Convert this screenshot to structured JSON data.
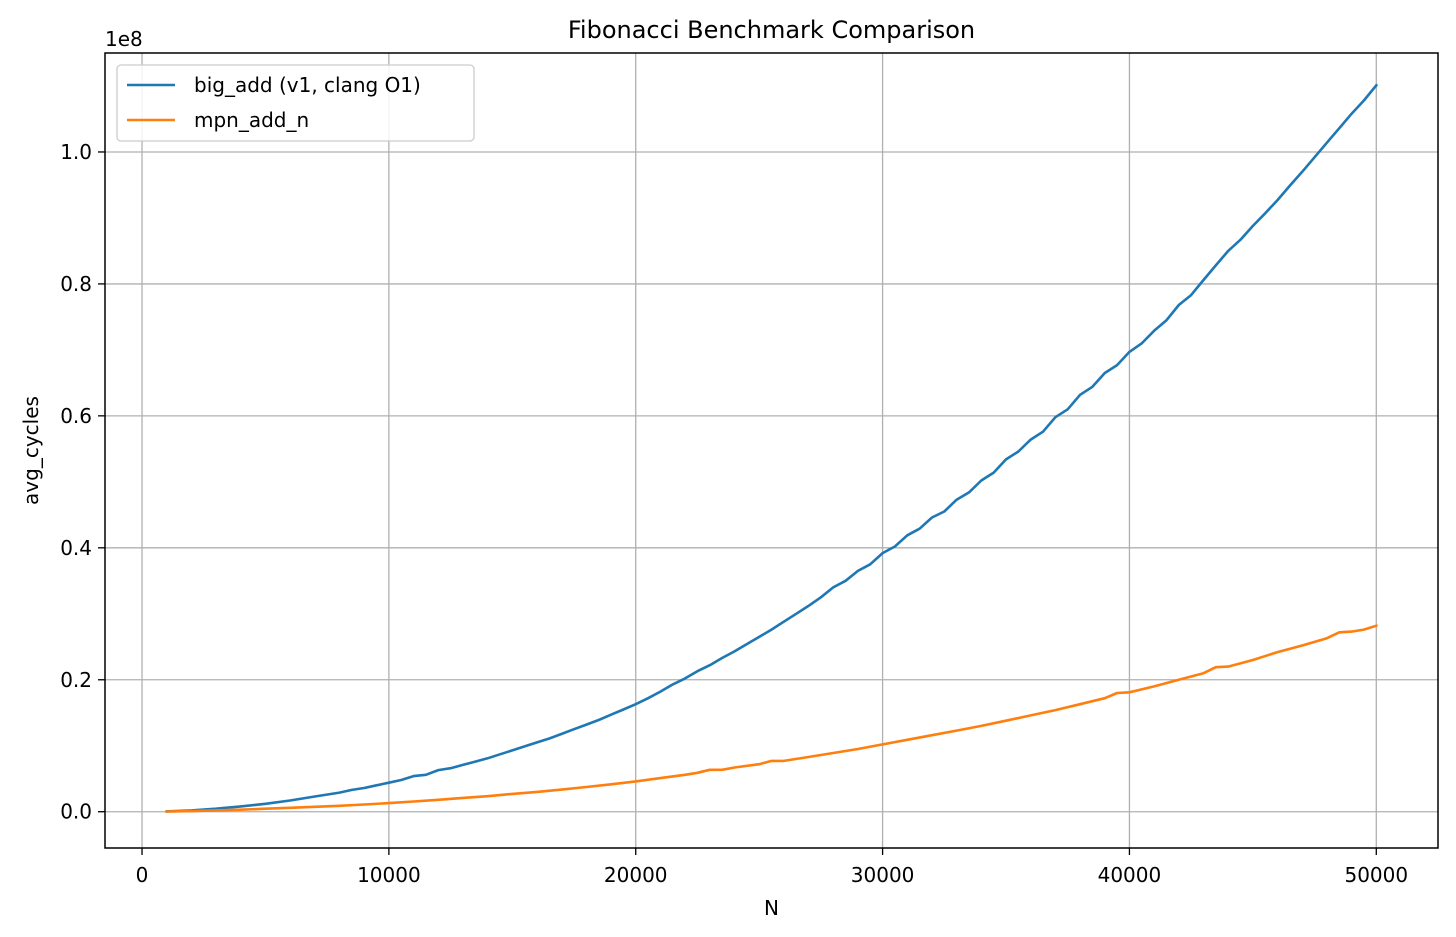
{
  "chart_data": {
    "type": "line",
    "title": "Fibonacci Benchmark Comparison",
    "xlabel": "N",
    "ylabel": "avg_cycles",
    "y_offset_label": "1e8",
    "y_scale": 100000000,
    "xlim": [
      -1500,
      52500
    ],
    "ylim": [
      -5500000,
      115000000
    ],
    "xticks": [
      0,
      10000,
      20000,
      30000,
      40000,
      50000
    ],
    "xtick_labels": [
      "0",
      "10000",
      "20000",
      "30000",
      "40000",
      "50000"
    ],
    "yticks": [
      0,
      20000000,
      40000000,
      60000000,
      80000000,
      100000000
    ],
    "ytick_labels": [
      "0.0",
      "0.2",
      "0.4",
      "0.6",
      "0.8",
      "1.0"
    ],
    "grid": true,
    "legend_position": "upper-left",
    "series": [
      {
        "name": "big_add (v1, clang O1)",
        "color": "#1f77b4",
        "x": [
          1000,
          2000,
          3000,
          4000,
          5000,
          6000,
          7000,
          8000,
          8500,
          9000,
          9500,
          10000,
          10500,
          11000,
          11500,
          12000,
          12500,
          13000,
          13500,
          14000,
          14500,
          15000,
          15500,
          16000,
          16500,
          17000,
          17500,
          18000,
          18500,
          19000,
          19500,
          20000,
          20500,
          21000,
          21500,
          22000,
          22500,
          23000,
          23500,
          24000,
          24500,
          25000,
          25500,
          26000,
          26500,
          27000,
          27500,
          28000,
          28500,
          29000,
          29500,
          30000,
          30500,
          31000,
          31500,
          32000,
          32500,
          33000,
          33500,
          34000,
          34500,
          35000,
          35500,
          36000,
          36500,
          37000,
          37500,
          38000,
          38500,
          39000,
          39500,
          40000,
          40500,
          41000,
          41500,
          42000,
          42500,
          43000,
          43500,
          44000,
          44500,
          45000,
          45500,
          46000,
          46500,
          47000,
          47500,
          48000,
          48500,
          49000,
          49500,
          50000
        ],
        "y": [
          50000,
          200000,
          450000,
          800000,
          1200000,
          1700000,
          2300000,
          2900000,
          3300000,
          3600000,
          4000000,
          4400000,
          4800000,
          5400000,
          5600000,
          6300000,
          6600000,
          7100000,
          7600000,
          8100000,
          8700000,
          9300000,
          9900000,
          10500000,
          11100000,
          11800000,
          12500000,
          13200000,
          13900000,
          14700000,
          15500000,
          16300000,
          17200000,
          18200000,
          19300000,
          20200000,
          21300000,
          22200000,
          23300000,
          24300000,
          25400000,
          26500000,
          27600000,
          28800000,
          30000000,
          31200000,
          32500000,
          34000000,
          35000000,
          36500000,
          37500000,
          39200000,
          40200000,
          41900000,
          42900000,
          44600000,
          45500000,
          47300000,
          48400000,
          50200000,
          51400000,
          53400000,
          54600000,
          56400000,
          57600000,
          59800000,
          61000000,
          63200000,
          64400000,
          66500000,
          67700000,
          69700000,
          71000000,
          72900000,
          74500000,
          76800000,
          78300000,
          80600000,
          82800000,
          85000000,
          86700000,
          88800000,
          90700000,
          92700000,
          94900000,
          97000000,
          99200000,
          101400000,
          103600000,
          105800000,
          107800000,
          110100000
        ]
      },
      {
        "name": "mpn_add_n",
        "color": "#ff7f0e",
        "x": [
          1000,
          2000,
          3000,
          4000,
          5000,
          6000,
          7000,
          8000,
          9000,
          10000,
          11000,
          12000,
          13000,
          14000,
          15000,
          16000,
          17000,
          18000,
          19000,
          20000,
          21000,
          22000,
          22500,
          23000,
          23500,
          24000,
          25000,
          25500,
          26000,
          27000,
          28000,
          29000,
          30000,
          31000,
          32000,
          33000,
          34000,
          35000,
          36000,
          37000,
          38000,
          39000,
          39500,
          40000,
          41000,
          42000,
          43000,
          43500,
          44000,
          45000,
          46000,
          47000,
          48000,
          48500,
          49000,
          49500,
          50000
        ],
        "y": [
          30000,
          100000,
          200000,
          300000,
          450000,
          600000,
          750000,
          900000,
          1100000,
          1300000,
          1550000,
          1800000,
          2100000,
          2350000,
          2700000,
          3000000,
          3350000,
          3750000,
          4150000,
          4600000,
          5100000,
          5600000,
          5900000,
          6350000,
          6350000,
          6700000,
          7200000,
          7700000,
          7700000,
          8300000,
          8900000,
          9500000,
          10200000,
          10900000,
          11600000,
          12300000,
          13000000,
          13800000,
          14600000,
          15400000,
          16300000,
          17200000,
          18000000,
          18100000,
          19000000,
          20000000,
          21000000,
          21900000,
          22000000,
          23000000,
          24200000,
          25200000,
          26300000,
          27200000,
          27300000,
          27600000,
          28200000
        ]
      }
    ]
  }
}
